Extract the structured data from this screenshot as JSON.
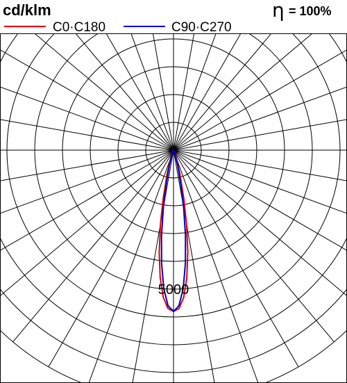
{
  "chart_data": {
    "type": "polar",
    "unit_label": "cd/klm",
    "efficiency_symbol": "η",
    "efficiency_value": "= 100%",
    "radial_tick_labels": [
      {
        "value": 5000,
        "label": "5000"
      }
    ],
    "r_max": 9000,
    "ring_step": 1000,
    "ray_step_deg": 10,
    "series": [
      {
        "name": "C0·C180",
        "color": "#e00000",
        "angles_deg": [
          0,
          2,
          4,
          6,
          8,
          10,
          12,
          15,
          20,
          30,
          45
        ],
        "intensities": [
          5800,
          5700,
          5300,
          4600,
          3700,
          2700,
          1800,
          900,
          300,
          80,
          20
        ]
      },
      {
        "name": "C90·C270",
        "color": "#0000cc",
        "angles_deg": [
          0,
          2,
          4,
          6,
          8,
          10,
          12,
          15,
          20,
          30,
          45
        ],
        "intensities": [
          5800,
          5600,
          5000,
          4100,
          3100,
          2100,
          1300,
          600,
          200,
          60,
          15
        ]
      }
    ]
  }
}
